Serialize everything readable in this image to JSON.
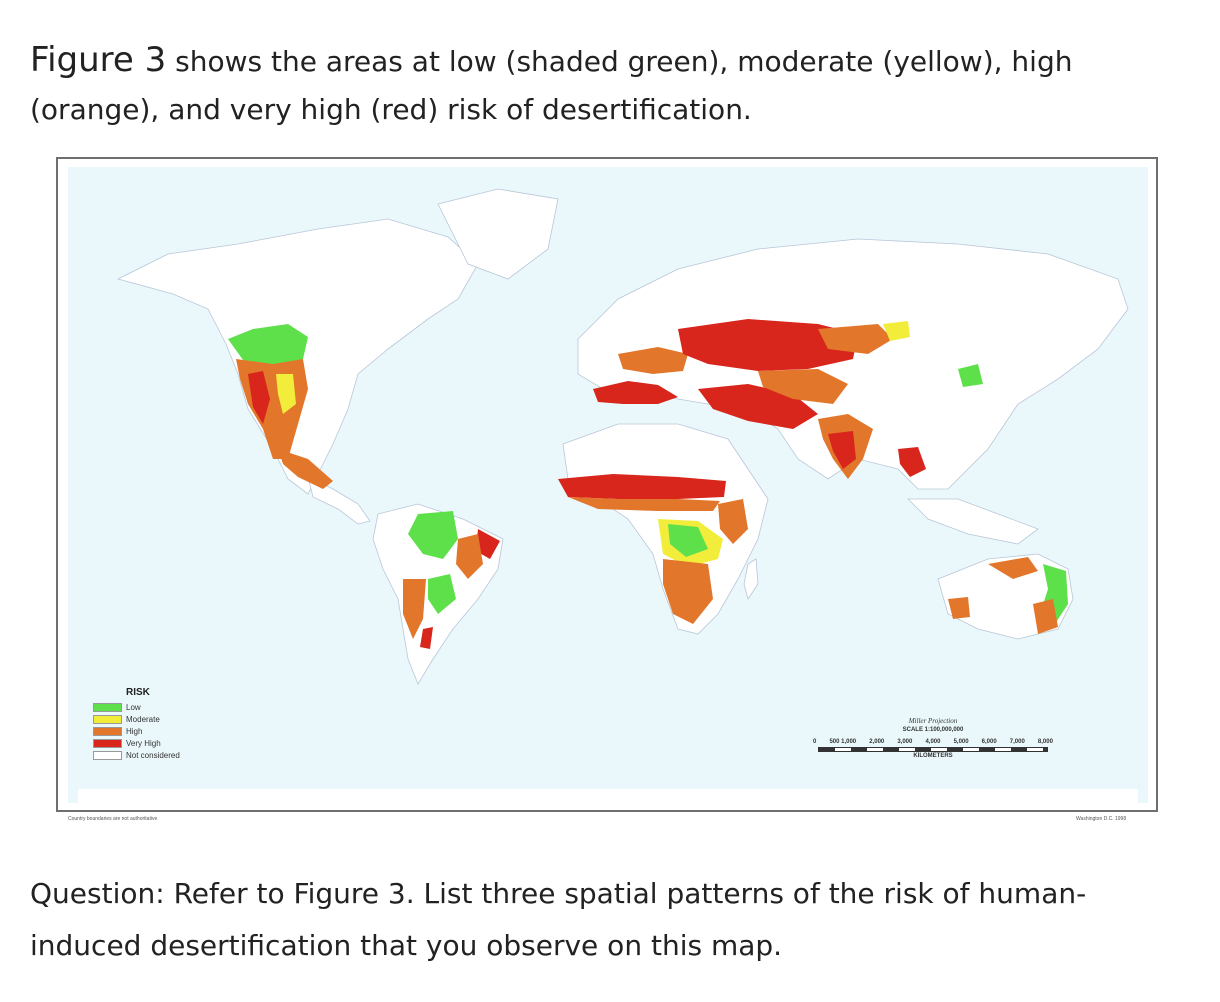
{
  "intro": {
    "figure_ref": "Figure 3",
    "text": " shows the areas at low (shaded green), moderate (yellow), high (orange), and very high (red) risk of desertification."
  },
  "map": {
    "colors": {
      "ocean": "#eaf8fb",
      "land": "#ffffff",
      "low": "#5ee04a",
      "moderate": "#f2ec3a",
      "high": "#e2762a",
      "very_high": "#d8261c",
      "border": "#b9c6d8"
    },
    "legend": {
      "title": "RISK",
      "items": [
        {
          "label": "Low",
          "color": "#5ee04a"
        },
        {
          "label": "Moderate",
          "color": "#f2ec3a"
        },
        {
          "label": "High",
          "color": "#e2762a"
        },
        {
          "label": "Very High",
          "color": "#d8261c"
        },
        {
          "label": "Not considered",
          "color": "#ffffff"
        }
      ]
    },
    "scale": {
      "projection": "Miller Projection",
      "scale_text": "SCALE 1:100,000,000",
      "ticks": [
        "0",
        "500 1,000",
        "2,000",
        "3,000",
        "4,000",
        "5,000",
        "6,000",
        "7,000",
        "8,000"
      ],
      "unit": "KILOMETERS"
    },
    "footer_left": "Country boundaries are not authoritative",
    "footer_right": "Washington D.C. 1998"
  },
  "question": {
    "text": "Question: Refer to Figure 3. List three spatial patterns of the risk of human-induced desertification that you observe on this map."
  }
}
